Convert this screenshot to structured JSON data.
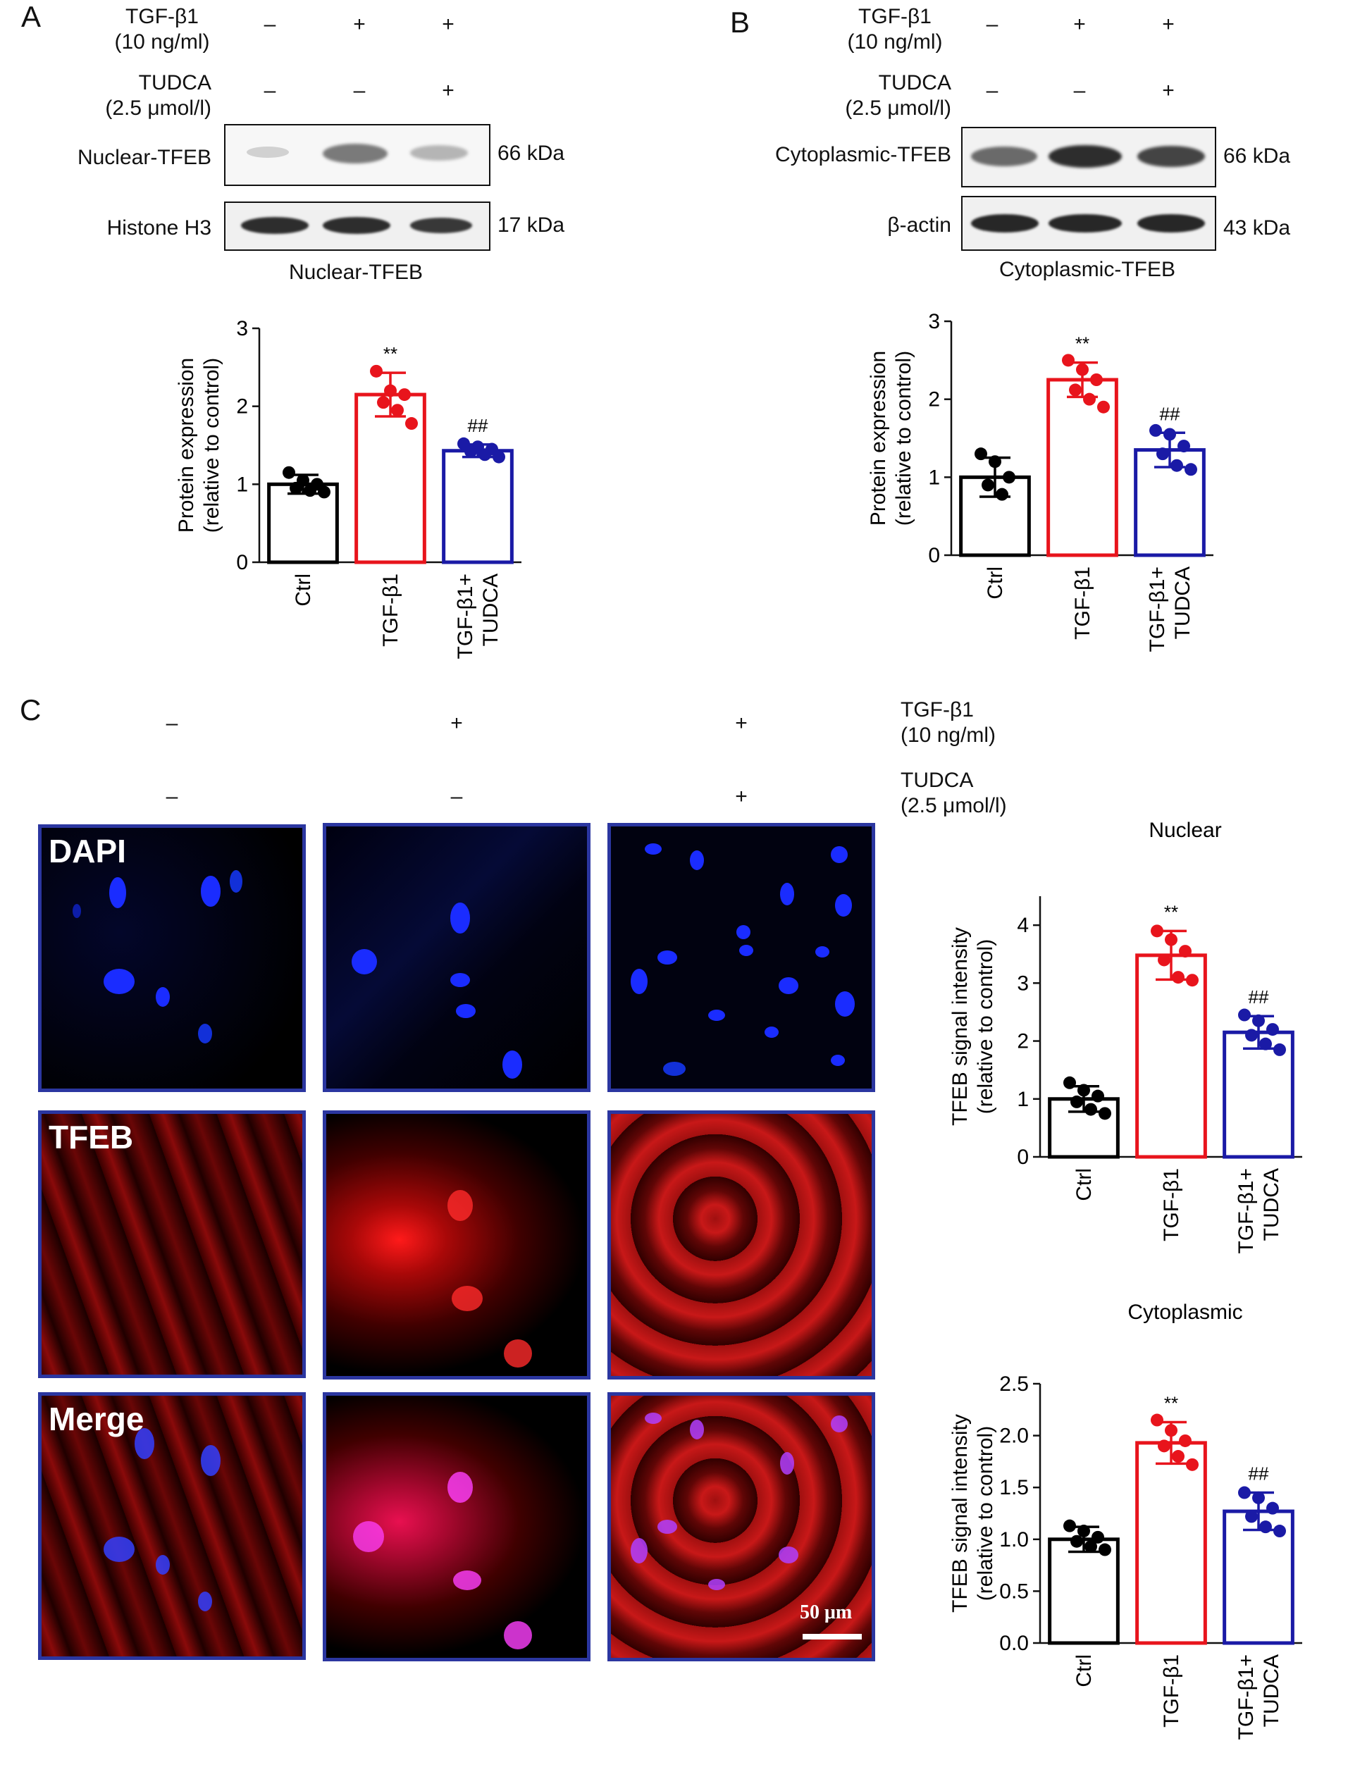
{
  "panels": {
    "A": {
      "letter": "A",
      "tgf_label": [
        "TGF-β1",
        "(10 ng/ml)"
      ],
      "tgf_signs": [
        "–",
        "+",
        "+"
      ],
      "tudca_label": [
        "TUDCA",
        "(2.5 μmol/l)"
      ],
      "tudca_signs": [
        "–",
        "–",
        "+"
      ],
      "blot_rows": [
        {
          "label": "Nuclear-TFEB",
          "kda": "66 kDa"
        },
        {
          "label": "Histone H3",
          "kda": "17 kDa"
        }
      ],
      "caption": "Nuclear-TFEB"
    },
    "B": {
      "letter": "B",
      "tgf_label": [
        "TGF-β1",
        "(10 ng/ml)"
      ],
      "tgf_signs": [
        "–",
        "+",
        "+"
      ],
      "tudca_label": [
        "TUDCA",
        "(2.5 μmol/l)"
      ],
      "tudca_signs": [
        "–",
        "–",
        "+"
      ],
      "blot_rows": [
        {
          "label": "Cytoplasmic-TFEB",
          "kda": "66 kDa"
        },
        {
          "label": "β-actin",
          "kda": "43 kDa"
        }
      ],
      "caption": "Cytoplasmic-TFEB"
    },
    "C": {
      "letter": "C",
      "tgf_label": [
        "TGF-β1",
        "(10 ng/ml)"
      ],
      "tgf_signs": [
        "–",
        "+",
        "+"
      ],
      "tudca_label": [
        "TUDCA",
        "(2.5 μmol/l)"
      ],
      "tudca_signs": [
        "–",
        "–",
        "+"
      ],
      "channels": [
        "DAPI",
        "TFEB",
        "Merge"
      ],
      "scale_bar": "50 μm"
    }
  },
  "colors": {
    "ctrl": "#000000",
    "tgf": "#e8141c",
    "tudca": "#1a1aa6",
    "frame": "#2b36a0"
  },
  "chart_data": [
    {
      "id": "A",
      "type": "bar",
      "title": "",
      "categories": [
        "Ctrl",
        "TGF-β1",
        "TGF-β1+\nTUDCA"
      ],
      "values": [
        1.0,
        2.15,
        1.43
      ],
      "errors": [
        0.12,
        0.28,
        0.08
      ],
      "points": [
        [
          1.15,
          1.05,
          1.0,
          0.95,
          0.92,
          0.9
        ],
        [
          2.45,
          2.2,
          2.15,
          2.05,
          1.95,
          1.78
        ],
        [
          1.52,
          1.48,
          1.45,
          1.42,
          1.38,
          1.35
        ]
      ],
      "annotations": [
        "",
        "**",
        "##"
      ],
      "ylabel": "Protein expression\n(relative to control)",
      "ylim": [
        0,
        3
      ],
      "yticks": [
        "0",
        "1",
        "2",
        "3"
      ]
    },
    {
      "id": "B",
      "type": "bar",
      "title": "",
      "categories": [
        "Ctrl",
        "TGF-β1",
        "TGF-β1+\nTUDCA"
      ],
      "values": [
        1.0,
        2.25,
        1.35
      ],
      "errors": [
        0.25,
        0.22,
        0.22
      ],
      "points": [
        [
          1.3,
          1.2,
          1.0,
          0.9,
          0.78
        ],
        [
          2.5,
          2.38,
          2.25,
          2.12,
          2.0,
          1.9
        ],
        [
          1.6,
          1.55,
          1.4,
          1.3,
          1.15,
          1.1
        ]
      ],
      "annotations": [
        "",
        "**",
        "##"
      ],
      "ylabel": "Protein expression\n(relative to control)",
      "ylim": [
        0,
        3
      ],
      "yticks": [
        "0",
        "1",
        "2",
        "3"
      ]
    },
    {
      "id": "C-nuclear",
      "type": "bar",
      "title": "Nuclear",
      "categories": [
        "Ctrl",
        "TGF-β1",
        "TGF-β1+\nTUDCA"
      ],
      "values": [
        1.0,
        3.48,
        2.15
      ],
      "errors": [
        0.22,
        0.42,
        0.28
      ],
      "points": [
        [
          1.28,
          1.15,
          1.05,
          0.95,
          0.82,
          0.75
        ],
        [
          3.9,
          3.75,
          3.55,
          3.4,
          3.1,
          3.05
        ],
        [
          2.45,
          2.35,
          2.2,
          2.1,
          1.95,
          1.85
        ]
      ],
      "annotations": [
        "",
        "**",
        "##"
      ],
      "ylabel": "TFEB signal intensity\n(relative to control)",
      "ylim": [
        0,
        4.5
      ],
      "yticks": [
        "0",
        "1",
        "2",
        "3",
        "4"
      ],
      "ytick_values": [
        0,
        1,
        2,
        3,
        4
      ]
    },
    {
      "id": "C-cytoplasmic",
      "type": "bar",
      "title": "Cytoplasmic",
      "categories": [
        "Ctrl",
        "TGF-β1",
        "TGF-β1+\nTUDCA"
      ],
      "values": [
        1.0,
        1.93,
        1.27
      ],
      "errors": [
        0.12,
        0.2,
        0.18
      ],
      "points": [
        [
          1.13,
          1.08,
          1.02,
          0.98,
          0.93,
          0.9
        ],
        [
          2.15,
          2.05,
          1.95,
          1.9,
          1.8,
          1.72
        ],
        [
          1.45,
          1.4,
          1.3,
          1.22,
          1.12,
          1.08
        ]
      ],
      "annotations": [
        "",
        "**",
        "##"
      ],
      "ylabel": "TFEB signal intensity\n(relative to control)",
      "ylim": [
        0,
        2.5
      ],
      "yticks": [
        "0.0",
        "0.5",
        "1.0",
        "1.5",
        "2.0",
        "2.5"
      ],
      "ytick_values": [
        0,
        0.5,
        1.0,
        1.5,
        2.0,
        2.5
      ]
    }
  ]
}
